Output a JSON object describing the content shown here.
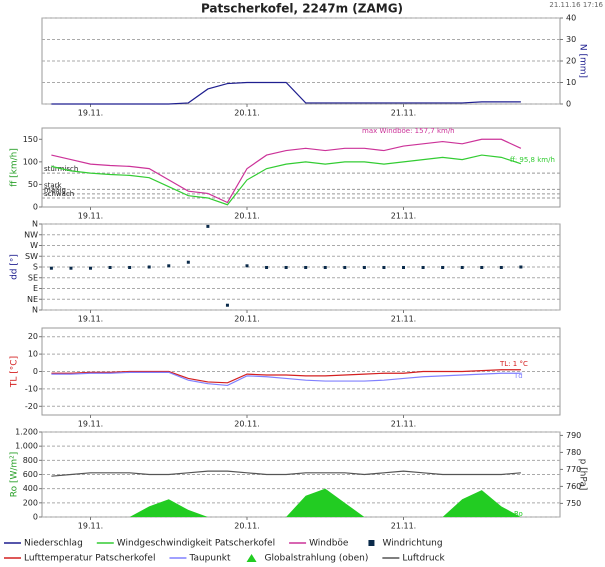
{
  "title": "Patscherkofel, 2247m (ZAMG)",
  "timestamp": "21.11.16 17:16",
  "chart_data": [
    {
      "type": "line",
      "y2label": "N [mm]",
      "y2label_color": "#1f1f8f",
      "xlim": [
        18.69,
        22.0
      ],
      "xticks": [
        {
          "value": 19,
          "label": "19.11."
        },
        {
          "value": 20,
          "label": "20.11."
        },
        {
          "value": 21,
          "label": "21.11."
        }
      ],
      "y2lim": [
        0,
        40
      ],
      "y2ticks": [
        0,
        10,
        20,
        30,
        40
      ],
      "grid": true,
      "x": [
        18.75,
        18.875,
        19.0,
        19.125,
        19.25,
        19.375,
        19.5,
        19.625,
        19.75,
        19.875,
        20.0,
        20.125,
        20.25,
        20.375,
        20.5,
        20.625,
        20.75,
        20.875,
        21.0,
        21.125,
        21.25,
        21.375,
        21.5,
        21.625,
        21.75
      ],
      "series": [
        {
          "name": "Niederschlag",
          "color": "#1f1f8f",
          "axis": "y2",
          "values": [
            0,
            0,
            0,
            0,
            0,
            0,
            0,
            0.5,
            7,
            9.5,
            10,
            10,
            10,
            0.5,
            0.5,
            0.5,
            0.5,
            0.5,
            0.5,
            0.5,
            0.5,
            0.5,
            1,
            1,
            1
          ]
        }
      ]
    },
    {
      "type": "line",
      "ylabel": "ff [km/h]",
      "ylabel_color": "#2aa02a",
      "xlim": [
        18.69,
        22.0
      ],
      "xticks": [
        {
          "value": 19,
          "label": "19.11."
        },
        {
          "value": 20,
          "label": "20.11."
        },
        {
          "value": 21,
          "label": "21.11."
        }
      ],
      "ylim": [
        0,
        175
      ],
      "yticks": [
        0,
        50,
        100,
        150
      ],
      "grid": false,
      "thresholds": [
        {
          "label": "stürmisch",
          "value": 75
        },
        {
          "label": "stark",
          "value": 39
        },
        {
          "label": "mäßig",
          "value": 29
        },
        {
          "label": "schwach",
          "value": 20
        }
      ],
      "x": [
        18.75,
        18.875,
        19.0,
        19.125,
        19.25,
        19.375,
        19.5,
        19.625,
        19.75,
        19.875,
        20.0,
        20.125,
        20.25,
        20.375,
        20.5,
        20.625,
        20.75,
        20.875,
        21.0,
        21.125,
        21.25,
        21.375,
        21.5,
        21.625,
        21.75
      ],
      "series": [
        {
          "name": "Windgeschwindigkeit Patscherkofel",
          "color": "#33cc33",
          "values": [
            90,
            80,
            75,
            72,
            70,
            65,
            45,
            25,
            20,
            5,
            60,
            85,
            95,
            100,
            95,
            100,
            100,
            95,
            100,
            105,
            110,
            105,
            115,
            110,
            96
          ]
        },
        {
          "name": "Windböe",
          "color": "#cc3399",
          "values": [
            115,
            105,
            95,
            92,
            90,
            85,
            60,
            35,
            30,
            10,
            85,
            115,
            125,
            130,
            125,
            130,
            130,
            125,
            135,
            140,
            145,
            140,
            150,
            150,
            130
          ]
        }
      ],
      "annotations": [
        {
          "text": "max Windböe: 157,7 km/h",
          "color": "#cc3399"
        },
        {
          "text": "ff: 95,8 km/h",
          "color": "#33cc33"
        }
      ]
    },
    {
      "type": "scatter",
      "ylabel": "dd [°]",
      "ylabel_color": "#1f1f8f",
      "xlim": [
        18.69,
        22.0
      ],
      "xticks": [
        {
          "value": 19,
          "label": "19.11."
        },
        {
          "value": 20,
          "label": "20.11."
        },
        {
          "value": 21,
          "label": "21.11."
        }
      ],
      "ylim": [
        0,
        360
      ],
      "grid": true,
      "yticks": [
        {
          "value": 360,
          "label": "N"
        },
        {
          "value": 315,
          "label": "NW"
        },
        {
          "value": 270,
          "label": "W"
        },
        {
          "value": 225,
          "label": "SW"
        },
        {
          "value": 180,
          "label": "S"
        },
        {
          "value": 135,
          "label": "SE"
        },
        {
          "value": 90,
          "label": "E"
        },
        {
          "value": 45,
          "label": "NE"
        },
        {
          "value": 0,
          "label": "N"
        }
      ],
      "x": [
        18.75,
        18.875,
        19.0,
        19.125,
        19.25,
        19.375,
        19.5,
        19.625,
        19.75,
        19.875,
        20.0,
        20.125,
        20.25,
        20.375,
        20.5,
        20.625,
        20.75,
        20.875,
        21.0,
        21.125,
        21.25,
        21.375,
        21.5,
        21.625,
        21.75
      ],
      "series": [
        {
          "name": "Windrichtung",
          "color": "#0a2a4a",
          "values": [
            175,
            175,
            175,
            178,
            178,
            180,
            185,
            200,
            350,
            20,
            185,
            178,
            178,
            178,
            178,
            178,
            178,
            178,
            178,
            178,
            178,
            178,
            178,
            178,
            180
          ]
        }
      ]
    },
    {
      "type": "line",
      "ylabel": "TL [°C]",
      "ylabel_color": "#d42020",
      "xlim": [
        18.69,
        22.0
      ],
      "xticks": [
        {
          "value": 19,
          "label": "19.11."
        },
        {
          "value": 20,
          "label": "20.11."
        },
        {
          "value": 21,
          "label": "21.11."
        }
      ],
      "ylim": [
        -25,
        25
      ],
      "yticks": [
        -20,
        -10,
        0,
        10,
        20
      ],
      "grid": true,
      "x": [
        18.75,
        18.875,
        19.0,
        19.125,
        19.25,
        19.375,
        19.5,
        19.625,
        19.75,
        19.875,
        20.0,
        20.125,
        20.25,
        20.375,
        20.5,
        20.625,
        20.75,
        20.875,
        21.0,
        21.125,
        21.25,
        21.375,
        21.5,
        21.625,
        21.75
      ],
      "series": [
        {
          "name": "Lufttemperatur Patscherkofel",
          "color": "#d42020",
          "values": [
            -1,
            -1,
            -0.5,
            -0.5,
            0,
            0,
            0,
            -4,
            -6,
            -6.5,
            -1.5,
            -2,
            -2,
            -2.5,
            -2.5,
            -2,
            -1.5,
            -1,
            -1,
            0,
            0,
            0,
            0.5,
            1,
            1
          ]
        },
        {
          "name": "Taupunkt",
          "color": "#8080ff",
          "values": [
            -1.5,
            -1.5,
            -1,
            -1,
            -0.5,
            -0.5,
            -0.5,
            -5,
            -7,
            -8,
            -2.5,
            -3,
            -4,
            -5,
            -5.5,
            -5.5,
            -5.5,
            -5,
            -4,
            -3,
            -2.5,
            -2,
            -1.5,
            -1,
            -1
          ]
        }
      ],
      "annotations": [
        {
          "text": "TL: 1 °C",
          "color": "#d42020"
        },
        {
          "text": "Td",
          "color": "#8080ff"
        }
      ]
    },
    {
      "type": "line",
      "ylabel": "Ro [W/m²]",
      "ylabel_color": "#2aa02a",
      "y2label": "p [hPa]",
      "y2label_color": "#333333",
      "xlim": [
        18.69,
        22.0
      ],
      "xticks": [
        {
          "value": 19,
          "label": "19.11."
        },
        {
          "value": 20,
          "label": "20.11."
        },
        {
          "value": 21,
          "label": "21.11."
        }
      ],
      "ylim": [
        0,
        1200
      ],
      "yticks": [
        0,
        200,
        400,
        600,
        800,
        {
          "value": 1000,
          "label": "1.000"
        },
        {
          "value": 1200,
          "label": "1.200"
        }
      ],
      "grid": true,
      "y2lim": [
        742,
        792
      ],
      "y2ticks": [
        750,
        760,
        770,
        780,
        790
      ],
      "x": [
        18.75,
        18.875,
        19.0,
        19.125,
        19.25,
        19.375,
        19.5,
        19.625,
        19.75,
        19.875,
        20.0,
        20.125,
        20.25,
        20.375,
        20.5,
        20.625,
        20.75,
        20.875,
        21.0,
        21.125,
        21.25,
        21.375,
        21.5,
        21.625,
        21.75
      ],
      "series": [
        {
          "name": "Globalstrahlung (oben)",
          "type": "area",
          "color": "#22cc22",
          "values": [
            0,
            0,
            0,
            0,
            0,
            150,
            250,
            100,
            0,
            0,
            0,
            0,
            0,
            300,
            400,
            200,
            0,
            0,
            0,
            0,
            0,
            250,
            380,
            150,
            0
          ]
        },
        {
          "name": "Luftdruck",
          "color": "#555555",
          "axis": "y2",
          "values": [
            766,
            767,
            768,
            768,
            768,
            767,
            767,
            768,
            769,
            769,
            768,
            767,
            767,
            768,
            768,
            768,
            767,
            768,
            769,
            768,
            767,
            767,
            767,
            767,
            768
          ]
        }
      ],
      "annotations": [
        {
          "text": "Ro",
          "color": "#22cc22"
        }
      ]
    }
  ]
}
